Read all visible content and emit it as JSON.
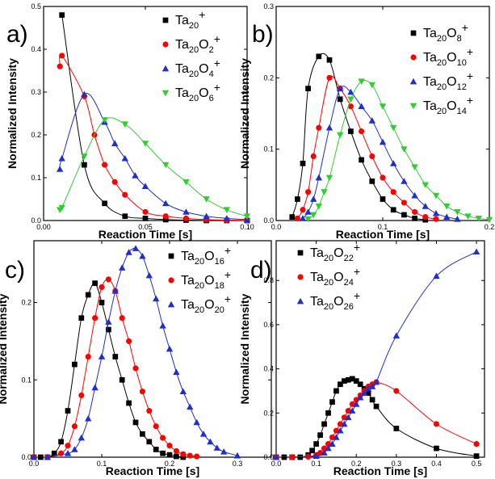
{
  "chart_data": [
    {
      "type": "scatter",
      "panel": "a)",
      "xlabel": "Reaction Time [s]",
      "ylabel": "Normalized Intensity",
      "xlim": [
        0,
        0.1
      ],
      "ylim": [
        0,
        0.5
      ],
      "xticks": [
        0.0,
        0.05,
        0.1
      ],
      "xtick_labels": [
        "0.00",
        "0.05",
        "0.10"
      ],
      "yticks": [
        0,
        0.1,
        0.2,
        0.3,
        0.4,
        0.5
      ],
      "ytick_labels": [
        "0.0",
        "0.1",
        "0.2",
        "0.3",
        "0.4",
        "0.5"
      ],
      "legend_position": "top-right",
      "series": [
        {
          "name": "Ta20+",
          "label": {
            "base": "Ta",
            "sub1": "20",
            "mid": "",
            "sub2": "",
            "sup": "+"
          },
          "color": "#000000",
          "marker": "square",
          "x": [
            0.009,
            0.02,
            0.03,
            0.04,
            0.05,
            0.06,
            0.07,
            0.08,
            0.09,
            0.1
          ],
          "y": [
            0.48,
            0.13,
            0.04,
            0.01,
            0.005,
            0.002,
            0.001,
            0.0,
            0.0,
            0.0
          ]
        },
        {
          "name": "Ta20O2+",
          "label": {
            "base": "Ta",
            "sub1": "20",
            "mid": "O",
            "sub2": "2",
            "sup": "+"
          },
          "color": "#ff0000",
          "marker": "circle",
          "x": [
            0.008,
            0.009,
            0.02,
            0.025,
            0.03,
            0.035,
            0.04,
            0.05,
            0.06,
            0.07,
            0.08,
            0.09,
            0.1
          ],
          "y": [
            0.36,
            0.385,
            0.29,
            0.2,
            0.13,
            0.09,
            0.06,
            0.02,
            0.01,
            0.005,
            0.002,
            0.001,
            0.0
          ]
        },
        {
          "name": "Ta20O4+",
          "label": {
            "base": "Ta",
            "sub1": "20",
            "mid": "O",
            "sub2": "4",
            "sup": "+"
          },
          "color": "#1f2ecc",
          "marker": "triangle-up",
          "x": [
            0.008,
            0.009,
            0.02,
            0.03,
            0.035,
            0.04,
            0.045,
            0.05,
            0.06,
            0.07,
            0.08,
            0.09,
            0.1
          ],
          "y": [
            0.12,
            0.145,
            0.295,
            0.23,
            0.18,
            0.145,
            0.105,
            0.08,
            0.04,
            0.02,
            0.01,
            0.005,
            0.002
          ]
        },
        {
          "name": "Ta20O6+",
          "label": {
            "base": "Ta",
            "sub1": "20",
            "mid": "O",
            "sub2": "6",
            "sup": "+"
          },
          "color": "#33cc33",
          "marker": "triangle-down",
          "x": [
            0.008,
            0.009,
            0.02,
            0.03,
            0.04,
            0.05,
            0.06,
            0.07,
            0.08,
            0.09,
            0.1
          ],
          "y": [
            0.025,
            0.03,
            0.15,
            0.235,
            0.225,
            0.18,
            0.13,
            0.09,
            0.05,
            0.025,
            0.01
          ]
        }
      ]
    },
    {
      "type": "scatter",
      "panel": "b)",
      "xlabel": "Reaction Time [s]",
      "ylabel": "Normalized Intensity",
      "xlim": [
        0,
        0.2
      ],
      "ylim": [
        0,
        0.3
      ],
      "xticks": [
        0.0,
        0.1,
        0.2
      ],
      "xtick_labels": [
        "0.0",
        "0.1",
        "0.2"
      ],
      "yticks": [
        0,
        0.1,
        0.2,
        0.3
      ],
      "ytick_labels": [
        "0.0",
        "0.1",
        "0.2",
        "0.3"
      ],
      "legend_position": "top-right",
      "series": [
        {
          "name": "Ta20O8+",
          "label": {
            "base": "Ta",
            "sub1": "20",
            "mid": "O",
            "sub2": "8",
            "sup": "+"
          },
          "color": "#000000",
          "marker": "square",
          "x": [
            0.015,
            0.02,
            0.025,
            0.03,
            0.04,
            0.05,
            0.06,
            0.07,
            0.08,
            0.09,
            0.1,
            0.11,
            0.12,
            0.13,
            0.14
          ],
          "y": [
            0.005,
            0.03,
            0.08,
            0.185,
            0.23,
            0.225,
            0.17,
            0.125,
            0.085,
            0.055,
            0.03,
            0.015,
            0.008,
            0.003,
            0.001
          ]
        },
        {
          "name": "Ta20O10+",
          "label": {
            "base": "Ta",
            "sub1": "20",
            "mid": "O",
            "sub2": "10",
            "sup": "+"
          },
          "color": "#ff0000",
          "marker": "circle",
          "x": [
            0.02,
            0.025,
            0.03,
            0.035,
            0.04,
            0.05,
            0.06,
            0.07,
            0.08,
            0.09,
            0.1,
            0.11,
            0.12,
            0.13,
            0.14,
            0.15
          ],
          "y": [
            0.003,
            0.015,
            0.04,
            0.09,
            0.13,
            0.2,
            0.185,
            0.16,
            0.125,
            0.09,
            0.06,
            0.04,
            0.025,
            0.012,
            0.005,
            0.002
          ]
        },
        {
          "name": "Ta20O12+",
          "label": {
            "base": "Ta",
            "sub1": "20",
            "mid": "O",
            "sub2": "12",
            "sup": "+"
          },
          "color": "#1f2ecc",
          "marker": "triangle-up",
          "x": [
            0.025,
            0.03,
            0.035,
            0.04,
            0.05,
            0.06,
            0.07,
            0.08,
            0.09,
            0.1,
            0.11,
            0.12,
            0.13,
            0.14,
            0.15,
            0.16,
            0.17
          ],
          "y": [
            0.003,
            0.012,
            0.03,
            0.06,
            0.13,
            0.185,
            0.18,
            0.16,
            0.14,
            0.11,
            0.08,
            0.055,
            0.035,
            0.02,
            0.01,
            0.005,
            0.002
          ]
        },
        {
          "name": "Ta20O14+",
          "label": {
            "base": "Ta",
            "sub1": "20",
            "mid": "O",
            "sub2": "14",
            "sup": "+"
          },
          "color": "#33cc33",
          "marker": "triangle-down",
          "x": [
            0.03,
            0.035,
            0.04,
            0.045,
            0.05,
            0.06,
            0.07,
            0.08,
            0.09,
            0.1,
            0.11,
            0.12,
            0.13,
            0.14,
            0.15,
            0.16,
            0.17,
            0.18,
            0.19,
            0.2
          ],
          "y": [
            0.002,
            0.008,
            0.02,
            0.04,
            0.06,
            0.12,
            0.17,
            0.195,
            0.19,
            0.16,
            0.13,
            0.1,
            0.075,
            0.05,
            0.035,
            0.02,
            0.012,
            0.006,
            0.003,
            0.001
          ]
        }
      ]
    },
    {
      "type": "scatter",
      "panel": "c)",
      "xlabel": "Reaction Time [s]",
      "ylabel": "Normalized Intensity",
      "xlim": [
        0,
        0.35
      ],
      "ylim": [
        0,
        0.28
      ],
      "xticks": [
        0.0,
        0.1,
        0.2,
        0.3
      ],
      "xtick_labels": [
        "0.0",
        "0.1",
        "0.2",
        "0.3"
      ],
      "yticks": [
        0,
        0.1,
        0.2
      ],
      "ytick_labels": [
        "0.0",
        "0.1",
        "0.2"
      ],
      "legend_position": "top-right",
      "series": [
        {
          "name": "Ta20O16+",
          "label": {
            "base": "Ta",
            "sub1": "20",
            "mid": "O",
            "sub2": "16",
            "sup": "+"
          },
          "color": "#000000",
          "marker": "square",
          "x": [
            0.0,
            0.01,
            0.02,
            0.03,
            0.04,
            0.05,
            0.06,
            0.07,
            0.08,
            0.09,
            0.1,
            0.11,
            0.12,
            0.13,
            0.14,
            0.15,
            0.16,
            0.17,
            0.18,
            0.19,
            0.2,
            0.21,
            0.22
          ],
          "y": [
            0.0,
            0.0,
            0.0,
            0.005,
            0.02,
            0.06,
            0.12,
            0.18,
            0.21,
            0.225,
            0.2,
            0.165,
            0.13,
            0.1,
            0.07,
            0.045,
            0.03,
            0.02,
            0.01,
            0.005,
            0.003,
            0.001,
            0.0
          ]
        },
        {
          "name": "Ta20O18+",
          "label": {
            "base": "Ta",
            "sub1": "20",
            "mid": "O",
            "sub2": "18",
            "sup": "+"
          },
          "color": "#ff0000",
          "marker": "circle",
          "x": [
            0.0,
            0.02,
            0.04,
            0.05,
            0.06,
            0.07,
            0.08,
            0.09,
            0.1,
            0.11,
            0.12,
            0.13,
            0.14,
            0.15,
            0.16,
            0.17,
            0.18,
            0.19,
            0.2,
            0.21,
            0.22,
            0.23,
            0.24
          ],
          "y": [
            0.0,
            0.0,
            0.005,
            0.015,
            0.04,
            0.08,
            0.13,
            0.18,
            0.22,
            0.23,
            0.215,
            0.18,
            0.15,
            0.115,
            0.085,
            0.06,
            0.04,
            0.025,
            0.015,
            0.008,
            0.004,
            0.002,
            0.001
          ]
        },
        {
          "name": "Ta20O20+",
          "label": {
            "base": "Ta",
            "sub1": "20",
            "mid": "O",
            "sub2": "20",
            "sup": "+"
          },
          "color": "#1f2ecc",
          "marker": "triangle-up",
          "x": [
            0.0,
            0.02,
            0.05,
            0.06,
            0.07,
            0.08,
            0.09,
            0.1,
            0.11,
            0.12,
            0.13,
            0.14,
            0.15,
            0.16,
            0.17,
            0.18,
            0.19,
            0.2,
            0.21,
            0.22,
            0.23,
            0.24,
            0.25,
            0.26,
            0.27,
            0.28,
            0.3
          ],
          "y": [
            0.0,
            0.0,
            0.005,
            0.01,
            0.025,
            0.05,
            0.09,
            0.13,
            0.175,
            0.215,
            0.245,
            0.265,
            0.27,
            0.26,
            0.235,
            0.205,
            0.17,
            0.14,
            0.11,
            0.085,
            0.065,
            0.045,
            0.03,
            0.02,
            0.012,
            0.007,
            0.002
          ]
        }
      ]
    },
    {
      "type": "scatter",
      "panel": "d)",
      "xlabel": "Reaction Time [s]",
      "ylabel": "Normalized Intensity",
      "xlim": [
        0,
        0.52
      ],
      "ylim": [
        0,
        0.98
      ],
      "xticks": [
        0.0,
        0.1,
        0.2,
        0.3,
        0.4,
        0.5
      ],
      "xtick_labels": [
        "0.0",
        "0.1",
        "0.2",
        "0.3",
        "0.4",
        "0.5"
      ],
      "yticks": [
        0,
        0.2,
        0.4,
        0.6,
        0.8
      ],
      "ytick_labels": [
        "0.0",
        "0.2",
        "0.4",
        "0.6",
        "0.8"
      ],
      "legend_position": "top-left",
      "series": [
        {
          "name": "Ta20O22+",
          "label": {
            "base": "Ta",
            "sub1": "20",
            "mid": "O",
            "sub2": "22",
            "sup": "+"
          },
          "color": "#000000",
          "marker": "square",
          "x": [
            0.0,
            0.02,
            0.04,
            0.06,
            0.08,
            0.09,
            0.1,
            0.11,
            0.12,
            0.13,
            0.14,
            0.15,
            0.16,
            0.17,
            0.18,
            0.19,
            0.2,
            0.21,
            0.22,
            0.23,
            0.24,
            0.25,
            0.3,
            0.4,
            0.5
          ],
          "y": [
            0.0,
            0.0,
            0.0,
            0.0,
            0.01,
            0.03,
            0.06,
            0.1,
            0.15,
            0.2,
            0.25,
            0.3,
            0.33,
            0.345,
            0.35,
            0.355,
            0.345,
            0.33,
            0.31,
            0.29,
            0.26,
            0.23,
            0.13,
            0.04,
            0.005
          ]
        },
        {
          "name": "Ta20O24+",
          "label": {
            "base": "Ta",
            "sub1": "20",
            "mid": "O",
            "sub2": "24",
            "sup": "+"
          },
          "color": "#ff0000",
          "marker": "circle",
          "x": [
            0.0,
            0.04,
            0.08,
            0.1,
            0.11,
            0.12,
            0.13,
            0.14,
            0.15,
            0.16,
            0.17,
            0.18,
            0.19,
            0.2,
            0.21,
            0.22,
            0.23,
            0.24,
            0.25,
            0.3,
            0.4,
            0.5
          ],
          "y": [
            0.0,
            0.0,
            0.002,
            0.01,
            0.02,
            0.04,
            0.06,
            0.09,
            0.12,
            0.15,
            0.18,
            0.21,
            0.24,
            0.26,
            0.28,
            0.3,
            0.32,
            0.33,
            0.34,
            0.3,
            0.15,
            0.06
          ]
        },
        {
          "name": "Ta20O26+",
          "label": {
            "base": "Ta",
            "sub1": "20",
            "mid": "O",
            "sub2": "26",
            "sup": "+"
          },
          "color": "#1f2ecc",
          "marker": "triangle-up",
          "x": [
            0.0,
            0.1,
            0.12,
            0.13,
            0.14,
            0.15,
            0.16,
            0.17,
            0.18,
            0.19,
            0.2,
            0.21,
            0.22,
            0.23,
            0.24,
            0.25,
            0.3,
            0.4,
            0.5
          ],
          "y": [
            0.0,
            0.005,
            0.02,
            0.04,
            0.06,
            0.09,
            0.12,
            0.15,
            0.18,
            0.21,
            0.24,
            0.27,
            0.29,
            0.31,
            0.32,
            0.34,
            0.55,
            0.82,
            0.93
          ]
        }
      ]
    }
  ]
}
